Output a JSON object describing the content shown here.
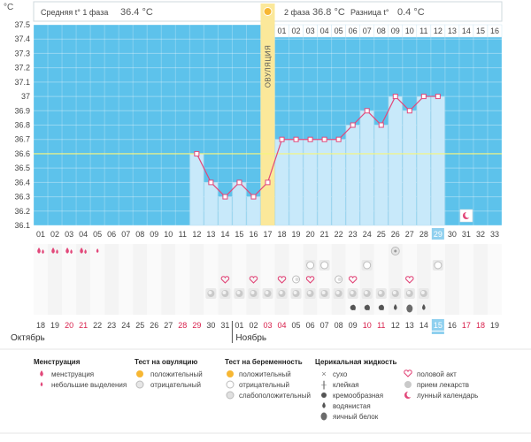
{
  "chart_data": {
    "type": "line",
    "title": "",
    "ylabel": "°C",
    "ylim": [
      36.1,
      37.5
    ],
    "yticks": [
      "36.1",
      "36.2",
      "36.3",
      "36.4",
      "36.5",
      "36.6",
      "36.7",
      "36.8",
      "36.9",
      "37",
      "37.1",
      "37.2",
      "37.3",
      "37.4",
      "37.5"
    ],
    "phase1_label": "Средняя t° 1 фаза",
    "phase1_value": "36.4 °C",
    "phase2_label": "2 фаза",
    "phase2_value": "36.8 °C",
    "diff_label": "Разница t°",
    "diff_value": "0.4 °C",
    "ovulation_label": "ОВУЛЯЦИЯ",
    "ovulation_day": 17,
    "coverline": 36.6,
    "phase2_day_labels": [
      "01",
      "02",
      "03",
      "04",
      "05",
      "06",
      "07",
      "08",
      "09",
      "10",
      "11",
      "12",
      "13",
      "14",
      "15",
      "16"
    ],
    "cycle_days": [
      "01",
      "02",
      "03",
      "04",
      "05",
      "06",
      "07",
      "08",
      "09",
      "10",
      "11",
      "12",
      "13",
      "14",
      "15",
      "16",
      "17",
      "18",
      "19",
      "20",
      "21",
      "22",
      "23",
      "24",
      "25",
      "26",
      "27",
      "28",
      "29",
      "30",
      "31",
      "32",
      "33"
    ],
    "current_day": 29,
    "series": [
      {
        "x": [
          12,
          13,
          14,
          15,
          16,
          17,
          18,
          19,
          20,
          21,
          22,
          23,
          24,
          25,
          26,
          27,
          28,
          29
        ],
        "values": [
          36.6,
          36.4,
          36.3,
          36.4,
          36.3,
          36.4,
          36.7,
          36.7,
          36.7,
          36.7,
          36.7,
          36.8,
          36.9,
          36.8,
          37.0,
          36.9,
          37.0,
          37.0
        ]
      }
    ],
    "moon_day": 31,
    "calendar_dates": [
      "18",
      "19",
      "20",
      "21",
      "22",
      "23",
      "24",
      "25",
      "26",
      "27",
      "28",
      "29",
      "30",
      "31",
      "01",
      "02",
      "03",
      "04",
      "05",
      "06",
      "07",
      "08",
      "09",
      "10",
      "11",
      "12",
      "13",
      "14",
      "15",
      "16",
      "17",
      "18",
      "19"
    ],
    "weekend_indices": [
      2,
      3,
      10,
      11,
      16,
      17,
      23,
      24,
      30,
      31
    ],
    "today_index": 28,
    "month1": "Октябрь",
    "month2": "Ноябрь",
    "month2_start_index": 14,
    "rows": {
      "menstruation": [
        1,
        2,
        3,
        4
      ],
      "spotting": [
        5
      ],
      "ovulation_test_negative": [
        26
      ],
      "pregnancy_test_negative": [
        20,
        21,
        24,
        29
      ],
      "intercourse": [
        14,
        16,
        18,
        20,
        23,
        27
      ],
      "pregnancy_test_faint": [
        19,
        22
      ],
      "pills": [
        13,
        14,
        15,
        16,
        17,
        18,
        19,
        20,
        21,
        22,
        23,
        24,
        25,
        26,
        27,
        28
      ],
      "creamy": [
        23,
        24,
        25
      ],
      "watery": [
        26,
        28
      ],
      "eggwhite": [
        27
      ]
    },
    "legend": {
      "menstruation_title": "Менструация",
      "menstruation_items": [
        "менструация",
        "небольшие выделения"
      ],
      "ovulation_title": "Тест на овуляцию",
      "ovulation_items": [
        "положительный",
        "отрицательный"
      ],
      "pregnancy_title": "Тест на беременность",
      "pregnancy_items": [
        "положительный",
        "отрицательный",
        "слабоположительный"
      ],
      "fluid_title": "Церикальная жидкость",
      "fluid_items": [
        "сухо",
        "клейкая",
        "кремообразная",
        "водянистая",
        "яичный белок"
      ],
      "other_items": [
        "половой акт",
        "прием лекарств",
        "лунный календарь"
      ]
    },
    "colors": {
      "background": "#5dc2eb",
      "bar": "#c8e9fa",
      "line": "#e2487a",
      "ovulation": "#fbe89a",
      "coverline": "#f6f67a",
      "today": "#8fd0ef",
      "weekend": "#d8204c"
    }
  }
}
